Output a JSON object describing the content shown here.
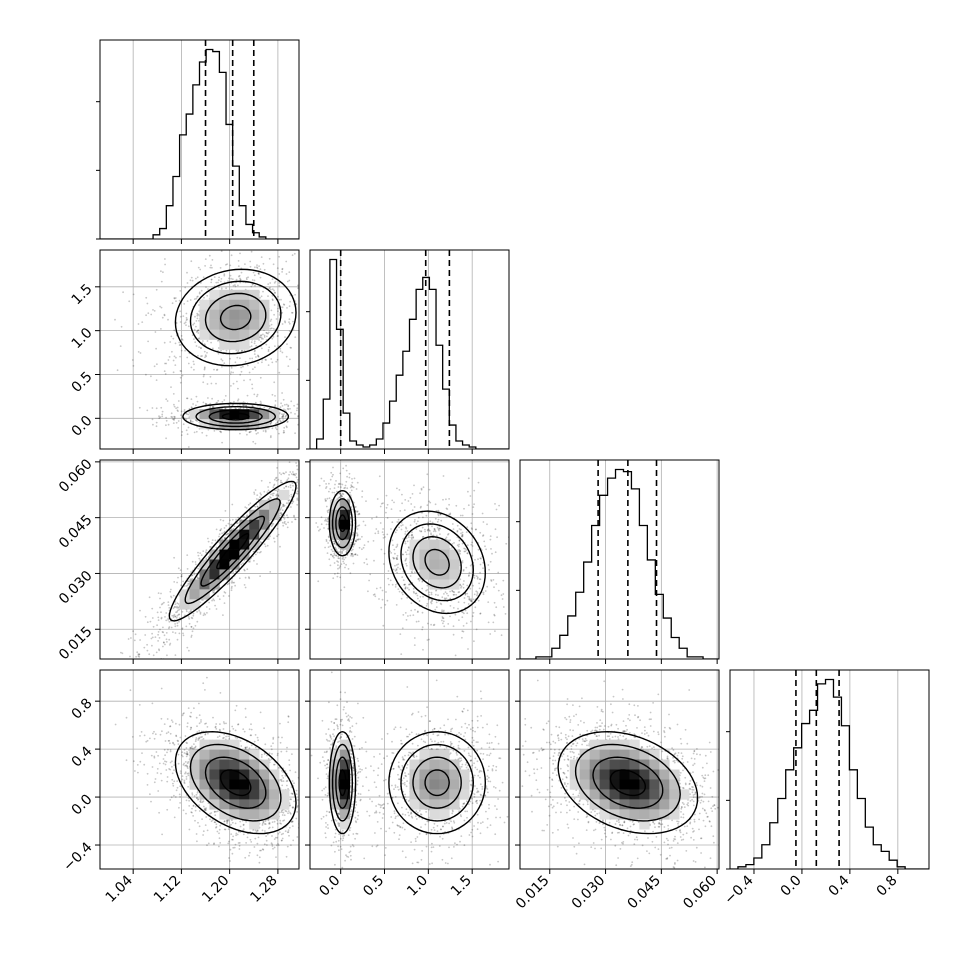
{
  "chart_data": {
    "type": "corner",
    "title": "",
    "parameters": [
      {
        "label": "",
        "range": [
          0.985,
          1.315
        ],
        "ticks": [
          "1.04",
          "1.12",
          "1.20",
          "1.28"
        ]
      },
      {
        "label": "",
        "range": [
          -0.35,
          1.92
        ],
        "ticks": [
          "0.0",
          "0.5",
          "1.0",
          "1.5"
        ]
      },
      {
        "label": "",
        "range": [
          0.007,
          0.0605
        ],
        "ticks": [
          "0.015",
          "0.030",
          "0.045",
          "0.060"
        ]
      },
      {
        "label": "",
        "range": [
          -0.6,
          1.06
        ],
        "ticks": [
          "−0.4",
          "0.0",
          "0.4",
          "0.8"
        ]
      }
    ],
    "quantiles": [
      [
        1.16,
        1.205,
        1.24
      ],
      [
        0.0,
        0.97,
        1.24
      ],
      [
        0.028,
        0.036,
        0.0437
      ],
      [
        -0.05,
        0.12,
        0.31
      ]
    ],
    "histograms": [
      {
        "edges_range": [
          0.985,
          1.315
        ],
        "counts": [
          0,
          0,
          0,
          0,
          0,
          0,
          0,
          0,
          0.02,
          0.05,
          0.16,
          0.3,
          0.5,
          0.6,
          0.74,
          0.85,
          0.91,
          0.9,
          0.8,
          0.55,
          0.35,
          0.16,
          0.07,
          0.03,
          0.01,
          0,
          0,
          0,
          0,
          0
        ]
      },
      {
        "edges_range": [
          -0.35,
          1.92
        ],
        "counts": [
          0,
          0.05,
          0.25,
          0.95,
          0.6,
          0.18,
          0.04,
          0.02,
          0.01,
          0.02,
          0.05,
          0.13,
          0.24,
          0.37,
          0.49,
          0.65,
          0.8,
          0.86,
          0.8,
          0.52,
          0.3,
          0.12,
          0.04,
          0.02,
          0.01,
          0,
          0,
          0,
          0,
          0
        ]
      },
      {
        "edges_range": [
          0.007,
          0.0605
        ],
        "counts": [
          0,
          0,
          0.01,
          0.01,
          0.05,
          0.11,
          0.2,
          0.31,
          0.45,
          0.62,
          0.76,
          0.84,
          0.88,
          0.87,
          0.79,
          0.62,
          0.46,
          0.3,
          0.19,
          0.1,
          0.05,
          0.01,
          0.01,
          0,
          0
        ]
      },
      {
        "edges_range": [
          -0.6,
          1.06
        ],
        "counts": [
          0,
          0.01,
          0.02,
          0.05,
          0.11,
          0.21,
          0.32,
          0.45,
          0.55,
          0.66,
          0.72,
          0.84,
          0.86,
          0.78,
          0.65,
          0.45,
          0.32,
          0.19,
          0.11,
          0.08,
          0.04,
          0.01,
          0,
          0,
          0
        ]
      }
    ],
    "contour_levels": [
      "0.5",
      "1.0",
      "1.5",
      "2.0 sigma"
    ],
    "grid": true,
    "legend": "none"
  }
}
